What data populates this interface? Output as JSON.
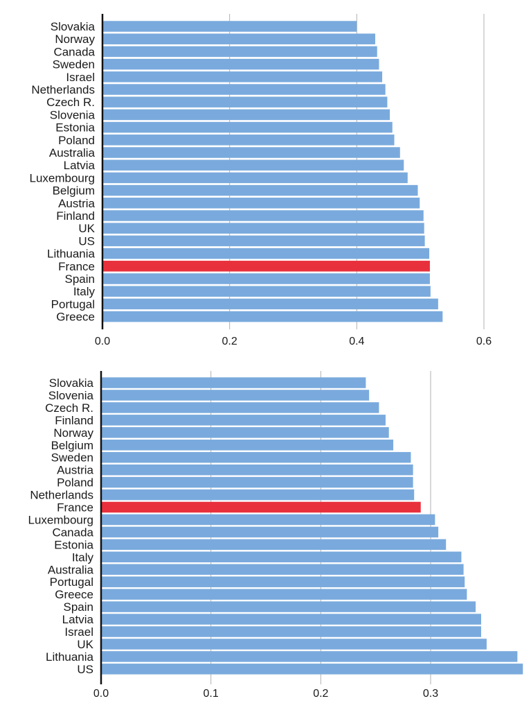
{
  "chart_data": [
    {
      "type": "bar",
      "orientation": "horizontal",
      "title": "",
      "xlabel": "",
      "ylabel": "",
      "xlim": [
        0,
        0.66
      ],
      "xticks": [
        0.0,
        0.2,
        0.4,
        0.6
      ],
      "xtick_labels": [
        "0.0",
        "0.2",
        "0.4",
        "0.6"
      ],
      "categories": [
        "Slovakia",
        "Norway",
        "Canada",
        "Sweden",
        "Israel",
        "Netherlands",
        "Czech R.",
        "Slovenia",
        "Estonia",
        "Poland",
        "Australia",
        "Latvia",
        "Luxembourg",
        "Belgium",
        "Austria",
        "Finland",
        "UK",
        "US",
        "Lithuania",
        "France",
        "Spain",
        "Italy",
        "Portugal",
        "Greece"
      ],
      "values": [
        0.4,
        0.429,
        0.432,
        0.435,
        0.44,
        0.445,
        0.448,
        0.452,
        0.456,
        0.459,
        0.468,
        0.474,
        0.48,
        0.496,
        0.499,
        0.505,
        0.506,
        0.507,
        0.514,
        0.515,
        0.515,
        0.516,
        0.528,
        0.535
      ],
      "highlight": "France",
      "colors": {
        "bar": "#7aaadd",
        "highlight": "#e8303c"
      },
      "grid": "vertical"
    },
    {
      "type": "bar",
      "orientation": "horizontal",
      "title": "",
      "xlabel": "",
      "ylabel": "",
      "xlim": [
        0,
        0.385
      ],
      "xticks": [
        0.0,
        0.1,
        0.2,
        0.3
      ],
      "xtick_labels": [
        "0.0",
        "0.1",
        "0.2",
        "0.3"
      ],
      "categories": [
        "Slovakia",
        "Slovenia",
        "Czech R.",
        "Finland",
        "Norway",
        "Belgium",
        "Sweden",
        "Austria",
        "Poland",
        "Netherlands",
        "France",
        "Luxembourg",
        "Canada",
        "Estonia",
        "Italy",
        "Australia",
        "Portugal",
        "Greece",
        "Spain",
        "Latvia",
        "Israel",
        "UK",
        "Lithuania",
        "US"
      ],
      "values": [
        0.241,
        0.244,
        0.253,
        0.259,
        0.262,
        0.266,
        0.282,
        0.284,
        0.284,
        0.285,
        0.291,
        0.304,
        0.307,
        0.314,
        0.328,
        0.33,
        0.331,
        0.333,
        0.341,
        0.346,
        0.346,
        0.351,
        0.379,
        0.384
      ],
      "highlight": "France",
      "colors": {
        "bar": "#7aaadd",
        "highlight": "#e8303c"
      },
      "grid": "vertical"
    }
  ]
}
